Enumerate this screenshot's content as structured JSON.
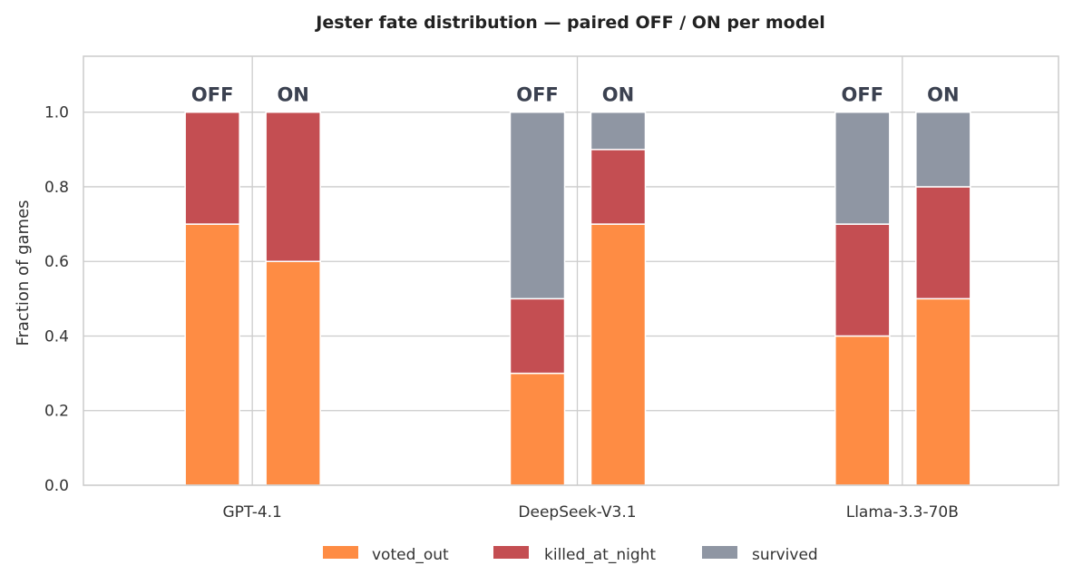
{
  "chart_data": {
    "type": "bar",
    "stacked": true,
    "title": "Jester fate distribution — paired OFF / ON per model",
    "xlabel": "",
    "ylabel": "Fraction of games",
    "ylim": [
      0,
      1.15
    ],
    "yticks": [
      "0.0",
      "0.2",
      "0.4",
      "0.6",
      "0.8",
      "1.0"
    ],
    "ytick_values": [
      0,
      0.2,
      0.4,
      0.6,
      0.8,
      1.0
    ],
    "grid": true,
    "legend_position": "bottom-center",
    "categories": [
      "GPT-4.1",
      "DeepSeek-V3.1",
      "Llama-3.3-70B"
    ],
    "conditions": [
      "OFF",
      "ON"
    ],
    "series": [
      {
        "name": "voted_out",
        "color": "#fe8c44",
        "values": [
          [
            0.7,
            0.6
          ],
          [
            0.3,
            0.7
          ],
          [
            0.4,
            0.5
          ]
        ]
      },
      {
        "name": "killed_at_night",
        "color": "#c44e52",
        "values": [
          [
            0.3,
            0.4
          ],
          [
            0.2,
            0.2
          ],
          [
            0.3,
            0.3
          ]
        ]
      },
      {
        "name": "survived",
        "color": "#8f96a3",
        "values": [
          [
            0.0,
            0.0
          ],
          [
            0.5,
            0.1
          ],
          [
            0.3,
            0.2
          ]
        ]
      }
    ]
  }
}
